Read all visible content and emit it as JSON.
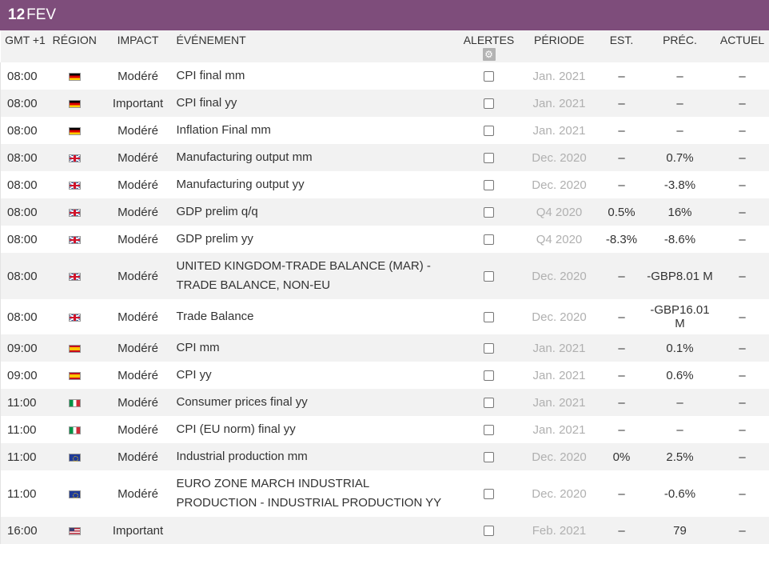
{
  "date_header": {
    "day": "12",
    "month": "FEV"
  },
  "columns": {
    "time": "GMT +1",
    "region": "RÉGION",
    "impact": "IMPACT",
    "event": "ÉVÉNEMENT",
    "alerts": "ALERTES",
    "period": "PÉRIODE",
    "est": "EST.",
    "prev": "PRÉC.",
    "actual": "ACTUEL"
  },
  "alerts_settings_icon": "gear-icon",
  "rows": [
    {
      "time": "08:00",
      "flag": "de",
      "impact": "Modéré",
      "event": "CPI final mm",
      "period": "Jan. 2021",
      "est": "–",
      "prev": "–",
      "actual": "–"
    },
    {
      "time": "08:00",
      "flag": "de",
      "impact": "Important",
      "event": "CPI final yy",
      "period": "Jan. 2021",
      "est": "–",
      "prev": "–",
      "actual": "–"
    },
    {
      "time": "08:00",
      "flag": "de",
      "impact": "Modéré",
      "event": "Inflation Final mm",
      "period": "Jan. 2021",
      "est": "–",
      "prev": "–",
      "actual": "–"
    },
    {
      "time": "08:00",
      "flag": "gb",
      "impact": "Modéré",
      "event": "Manufacturing output mm",
      "period": "Dec. 2020",
      "est": "–",
      "prev": "0.7%",
      "actual": "–"
    },
    {
      "time": "08:00",
      "flag": "gb",
      "impact": "Modéré",
      "event": "Manufacturing output yy",
      "period": "Dec. 2020",
      "est": "–",
      "prev": "-3.8%",
      "actual": "–"
    },
    {
      "time": "08:00",
      "flag": "gb",
      "impact": "Modéré",
      "event": "GDP prelim q/q",
      "period": "Q4 2020",
      "est": "0.5%",
      "prev": "16%",
      "actual": "–"
    },
    {
      "time": "08:00",
      "flag": "gb",
      "impact": "Modéré",
      "event": "GDP prelim yy",
      "period": "Q4 2020",
      "est": "-8.3%",
      "prev": "-8.6%",
      "actual": "–"
    },
    {
      "time": "08:00",
      "flag": "gb",
      "impact": "Modéré",
      "event": "UNITED KINGDOM-TRADE BALANCE (MAR) - TRADE BALANCE, NON-EU",
      "period": "Dec. 2020",
      "est": "–",
      "prev": "-GBP8.01 M",
      "actual": "–"
    },
    {
      "time": "08:00",
      "flag": "gb",
      "impact": "Modéré",
      "event": "Trade Balance",
      "period": "Dec. 2020",
      "est": "–",
      "prev": "-GBP16.01 M",
      "actual": "–"
    },
    {
      "time": "09:00",
      "flag": "es",
      "impact": "Modéré",
      "event": "CPI mm",
      "period": "Jan. 2021",
      "est": "–",
      "prev": "0.1%",
      "actual": "–"
    },
    {
      "time": "09:00",
      "flag": "es",
      "impact": "Modéré",
      "event": "CPI yy",
      "period": "Jan. 2021",
      "est": "–",
      "prev": "0.6%",
      "actual": "–"
    },
    {
      "time": "11:00",
      "flag": "it",
      "impact": "Modéré",
      "event": "Consumer prices final yy",
      "period": "Jan. 2021",
      "est": "–",
      "prev": "–",
      "actual": "–"
    },
    {
      "time": "11:00",
      "flag": "it",
      "impact": "Modéré",
      "event": "CPI (EU norm) final yy",
      "period": "Jan. 2021",
      "est": "–",
      "prev": "–",
      "actual": "–"
    },
    {
      "time": "11:00",
      "flag": "eu",
      "impact": "Modéré",
      "event": "Industrial production mm",
      "period": "Dec. 2020",
      "est": "0%",
      "prev": "2.5%",
      "actual": "–"
    },
    {
      "time": "11:00",
      "flag": "eu",
      "impact": "Modéré",
      "event": "EURO ZONE MARCH INDUSTRIAL PRODUCTION - INDUSTRIAL PRODUCTION YY",
      "period": "Dec. 2020",
      "est": "–",
      "prev": "-0.6%",
      "actual": "–"
    },
    {
      "time": "16:00",
      "flag": "us",
      "impact": "Important",
      "event": "",
      "period": "Feb. 2021",
      "est": "–",
      "prev": "79",
      "actual": "–"
    }
  ]
}
